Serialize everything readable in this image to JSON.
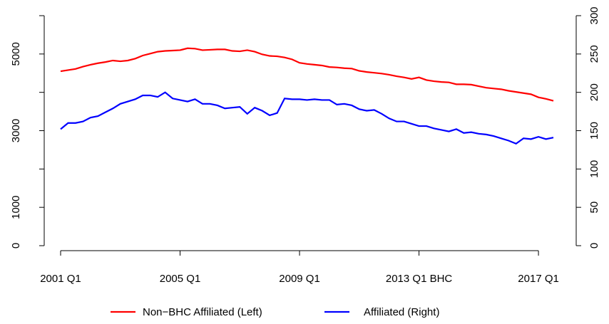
{
  "chart_data": {
    "type": "line",
    "categories": [
      "2001 Q1",
      null,
      null,
      null,
      null,
      null,
      null,
      null,
      null,
      null,
      null,
      null,
      null,
      null,
      null,
      null,
      "2005 Q1",
      null,
      null,
      null,
      null,
      null,
      null,
      null,
      null,
      null,
      null,
      null,
      null,
      null,
      null,
      null,
      "2009 Q1",
      null,
      null,
      null,
      null,
      null,
      null,
      null,
      null,
      null,
      null,
      null,
      null,
      null,
      null,
      null,
      "2013 Q1 BHC",
      null,
      null,
      null,
      null,
      null,
      null,
      null,
      null,
      null,
      null,
      null,
      null,
      null,
      null,
      null,
      "2017 Q1",
      null,
      null
    ],
    "series": [
      {
        "name": "Non−BHC Affiliated (Left)",
        "color": "#ff0000",
        "axis": "y",
        "values": [
          4550,
          4580,
          4610,
          4670,
          4720,
          4760,
          4790,
          4830,
          4810,
          4830,
          4880,
          4960,
          5010,
          5060,
          5080,
          5090,
          5100,
          5150,
          5140,
          5100,
          5110,
          5120,
          5120,
          5080,
          5070,
          5100,
          5060,
          4990,
          4950,
          4940,
          4910,
          4860,
          4770,
          4740,
          4720,
          4700,
          4660,
          4650,
          4630,
          4620,
          4560,
          4530,
          4510,
          4490,
          4460,
          4420,
          4390,
          4350,
          4390,
          4320,
          4290,
          4270,
          4260,
          4210,
          4210,
          4200,
          4160,
          4120,
          4100,
          4080,
          4040,
          4010,
          3980,
          3950,
          3870,
          3830,
          3780
        ]
      },
      {
        "name": "Affiliated (Right)",
        "color": "#0000ff",
        "axis": "y2",
        "values": [
          152,
          160,
          160,
          162,
          167,
          169,
          174,
          179,
          185,
          188,
          191,
          196,
          196,
          194,
          200,
          192,
          190,
          188,
          191,
          185,
          185,
          183,
          179,
          180,
          181,
          172,
          180,
          176,
          170,
          173,
          192,
          191,
          191,
          190,
          191,
          190,
          190,
          184,
          185,
          183,
          178,
          176,
          177,
          172,
          166,
          162,
          162,
          159,
          156,
          156,
          153,
          151,
          149,
          152,
          147,
          148,
          146,
          145,
          143,
          140,
          137,
          133,
          140,
          139,
          142,
          139,
          141
        ]
      }
    ],
    "ylim": [
      0,
      6000
    ],
    "yticks": [
      0,
      1000,
      {
        "value": 2000
      },
      3000,
      {
        "value": 4000
      },
      5000,
      {
        "value": 6000
      }
    ],
    "y2lim": [
      0,
      300
    ],
    "y2ticks": [
      0,
      50,
      100,
      150,
      200,
      250,
      300
    ],
    "legend": "bottom"
  }
}
